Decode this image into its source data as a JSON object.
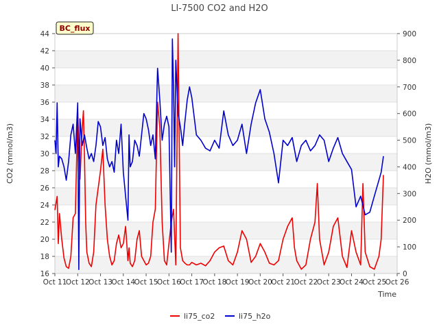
{
  "chart_data": {
    "type": "line",
    "title": "LI-7500 CO2 and H2O",
    "site_label": "BC_flux",
    "xlabel": "Time",
    "ylabel_left": "CO2 (mmol/m3)",
    "ylabel_right": "H2O (mmol/m3)",
    "xlim": [
      11,
      26
    ],
    "ylim_left": [
      16,
      44
    ],
    "ylim_right": [
      0,
      900
    ],
    "x_ticks": [
      11,
      12,
      13,
      14,
      15,
      16,
      17,
      18,
      19,
      20,
      21,
      22,
      23,
      24,
      25,
      26
    ],
    "x_tick_labels": [
      "Oct 11",
      "Oct 12",
      "Oct 13",
      "Oct 14",
      "Oct 15",
      "Oct 16",
      "Oct 17",
      "Oct 18",
      "Oct 19",
      "Oct 20",
      "Oct 21",
      "Oct 22",
      "Oct 23",
      "Oct 24",
      "Oct 25",
      "Oct 26"
    ],
    "y_left_ticks": [
      16,
      18,
      20,
      22,
      24,
      26,
      28,
      30,
      32,
      34,
      36,
      38,
      40,
      42,
      44
    ],
    "y_right_ticks": [
      0,
      100,
      200,
      300,
      400,
      500,
      600,
      700,
      800,
      900
    ],
    "legend": [
      {
        "name": "li75_co2",
        "color": "#ee0000"
      },
      {
        "name": "li75_h2o",
        "color": "#0000cc"
      }
    ],
    "series": [
      {
        "name": "li75_co2",
        "axis": "left",
        "color": "#ee0000",
        "x": [
          11.0,
          11.1,
          11.15,
          11.2,
          11.3,
          11.4,
          11.5,
          11.6,
          11.7,
          11.8,
          11.9,
          12.0,
          12.1,
          12.2,
          12.25,
          12.3,
          12.35,
          12.4,
          12.5,
          12.6,
          12.7,
          12.8,
          12.9,
          13.0,
          13.1,
          13.2,
          13.3,
          13.4,
          13.5,
          13.6,
          13.7,
          13.8,
          13.9,
          14.0,
          14.1,
          14.2,
          14.25,
          14.3,
          14.4,
          14.5,
          14.6,
          14.7,
          14.8,
          14.9,
          15.0,
          15.1,
          15.2,
          15.3,
          15.4,
          15.5,
          15.6,
          15.7,
          15.8,
          15.9,
          16.0,
          16.1,
          16.2,
          16.3,
          16.4,
          16.5,
          16.6,
          16.7,
          16.8,
          16.9,
          17.0,
          17.2,
          17.4,
          17.6,
          17.8,
          18.0,
          18.2,
          18.4,
          18.6,
          18.8,
          19.0,
          19.2,
          19.4,
          19.6,
          19.8,
          20.0,
          20.2,
          20.4,
          20.6,
          20.8,
          21.0,
          21.2,
          21.4,
          21.5,
          21.6,
          21.8,
          22.0,
          22.2,
          22.4,
          22.5,
          22.6,
          22.8,
          23.0,
          23.2,
          23.4,
          23.6,
          23.8,
          24.0,
          24.2,
          24.4,
          24.5,
          24.6,
          24.8,
          25.0,
          25.2,
          25.3,
          25.4
        ],
        "values": [
          23.4,
          25.0,
          19.5,
          23.0,
          20.0,
          17.8,
          16.8,
          16.6,
          18.0,
          22.5,
          23.0,
          34.8,
          27.0,
          33.0,
          35.0,
          29.5,
          22.0,
          18.5,
          17.2,
          16.8,
          18.5,
          24.0,
          26.0,
          28.0,
          30.5,
          24.0,
          20.0,
          18.0,
          17.0,
          17.5,
          19.5,
          20.5,
          19.0,
          19.5,
          21.5,
          17.5,
          19.0,
          17.2,
          16.8,
          17.5,
          20.0,
          21.0,
          18.0,
          17.5,
          17.0,
          17.2,
          18.0,
          22.0,
          23.5,
          36.0,
          33.0,
          22.0,
          17.5,
          17.0,
          19.5,
          22.0,
          23.5,
          17.0,
          44.0,
          19.0,
          17.5,
          17.2,
          17.0,
          17.0,
          17.3,
          17.0,
          17.2,
          16.9,
          17.5,
          18.5,
          19.0,
          19.2,
          17.5,
          17.0,
          18.5,
          21.0,
          20.0,
          17.3,
          18.0,
          19.5,
          18.5,
          17.2,
          17.0,
          17.5,
          20.0,
          21.5,
          22.5,
          19.0,
          17.5,
          16.5,
          17.0,
          20.0,
          22.0,
          26.5,
          20.0,
          17.0,
          18.5,
          21.5,
          22.5,
          18.0,
          16.7,
          21.0,
          18.5,
          17.0,
          26.5,
          18.5,
          16.8,
          16.5,
          18.0,
          20.0,
          27.5
        ]
      },
      {
        "name": "li75_h2o",
        "axis": "right",
        "color": "#0000cc",
        "x": [
          11.0,
          11.05,
          11.1,
          11.15,
          11.2,
          11.3,
          11.4,
          11.5,
          11.6,
          11.7,
          11.8,
          11.9,
          12.0,
          12.05,
          12.1,
          12.2,
          12.3,
          12.4,
          12.5,
          12.6,
          12.7,
          12.8,
          12.9,
          13.0,
          13.1,
          13.2,
          13.3,
          13.4,
          13.5,
          13.6,
          13.7,
          13.8,
          13.9,
          14.0,
          14.1,
          14.2,
          14.25,
          14.3,
          14.4,
          14.5,
          14.6,
          14.7,
          14.8,
          14.9,
          15.0,
          15.1,
          15.2,
          15.3,
          15.4,
          15.5,
          15.6,
          15.7,
          15.8,
          15.9,
          16.0,
          16.1,
          16.15,
          16.2,
          16.25,
          16.3,
          16.4,
          16.5,
          16.6,
          16.7,
          16.8,
          16.9,
          17.0,
          17.2,
          17.4,
          17.6,
          17.8,
          18.0,
          18.2,
          18.4,
          18.6,
          18.8,
          19.0,
          19.2,
          19.4,
          19.6,
          19.8,
          20.0,
          20.2,
          20.4,
          20.6,
          20.8,
          21.0,
          21.2,
          21.4,
          21.6,
          21.8,
          22.0,
          22.2,
          22.4,
          22.6,
          22.8,
          23.0,
          23.2,
          23.4,
          23.6,
          23.8,
          24.0,
          24.2,
          24.4,
          24.6,
          24.8,
          25.0,
          25.2,
          25.3,
          25.4
        ],
        "values": [
          500,
          450,
          640,
          400,
          440,
          430,
          400,
          350,
          420,
          520,
          560,
          450,
          640,
          15,
          580,
          480,
          520,
          470,
          430,
          450,
          420,
          480,
          570,
          550,
          480,
          510,
          430,
          400,
          420,
          380,
          500,
          450,
          560,
          380,
          290,
          200,
          520,
          400,
          420,
          500,
          480,
          440,
          520,
          600,
          580,
          540,
          480,
          520,
          430,
          770,
          650,
          500,
          560,
          590,
          550,
          80,
          880,
          700,
          400,
          800,
          600,
          550,
          480,
          570,
          650,
          700,
          660,
          520,
          500,
          470,
          460,
          500,
          470,
          610,
          520,
          480,
          500,
          560,
          450,
          560,
          640,
          690,
          580,
          530,
          450,
          340,
          500,
          480,
          510,
          420,
          480,
          500,
          460,
          480,
          520,
          500,
          420,
          470,
          510,
          450,
          420,
          390,
          250,
          290,
          220,
          230,
          290,
          350,
          380,
          440
        ]
      }
    ]
  }
}
